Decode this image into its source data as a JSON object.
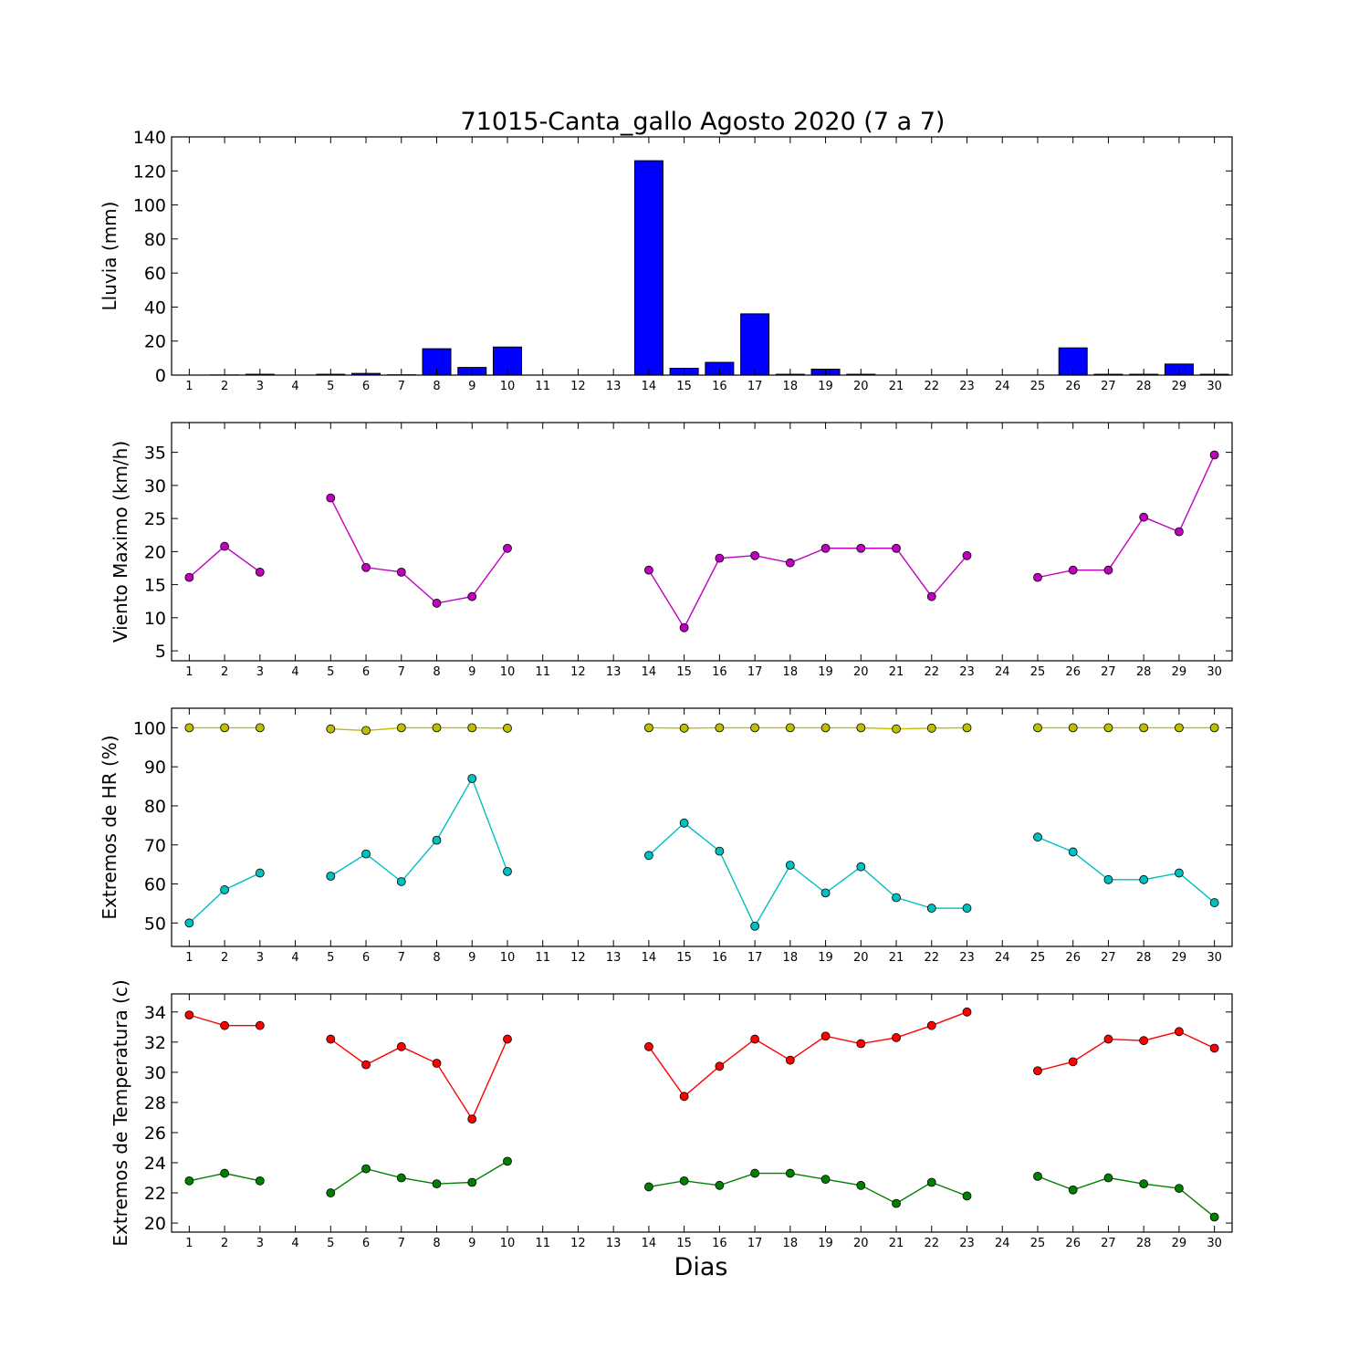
{
  "figure": {
    "title": "71015-Canta_gallo Agosto 2020  (7 a 7)",
    "xlabel": "Dias"
  },
  "chart_data": [
    {
      "type": "bar",
      "ylabel": "Lluvia (mm)",
      "ylim": [
        0,
        140
      ],
      "yticks": [
        0,
        20,
        40,
        60,
        80,
        100,
        120,
        140
      ],
      "xlim": [
        0.5,
        30.5
      ],
      "xticks": [
        1,
        2,
        3,
        4,
        5,
        6,
        7,
        8,
        9,
        10,
        11,
        12,
        13,
        14,
        15,
        16,
        17,
        18,
        19,
        20,
        21,
        22,
        23,
        24,
        25,
        26,
        27,
        28,
        29,
        30
      ],
      "categories": [
        1,
        2,
        3,
        4,
        5,
        6,
        7,
        8,
        9,
        10,
        11,
        12,
        13,
        14,
        15,
        16,
        17,
        18,
        19,
        20,
        21,
        22,
        23,
        24,
        25,
        26,
        27,
        28,
        29,
        30
      ],
      "series": [
        {
          "color": "#0000ff",
          "values": [
            0,
            0.1,
            0.5,
            0,
            0.5,
            1.0,
            0.2,
            15.5,
            4.5,
            16.5,
            0,
            0,
            0,
            126.0,
            4.0,
            7.5,
            36.0,
            0.5,
            3.5,
            0.5,
            0,
            0,
            0,
            0,
            0,
            16.0,
            0.5,
            0.5,
            6.5,
            0.5
          ]
        }
      ]
    },
    {
      "type": "line",
      "ylabel": "Viento Maximo (km/h)",
      "ylim": [
        3.5,
        39.5
      ],
      "yticks": [
        5,
        10,
        15,
        20,
        25,
        30,
        35
      ],
      "xlim": [
        0.5,
        30.5
      ],
      "xticks": [
        1,
        2,
        3,
        4,
        5,
        6,
        7,
        8,
        9,
        10,
        11,
        12,
        13,
        14,
        15,
        16,
        17,
        18,
        19,
        20,
        21,
        22,
        23,
        24,
        25,
        26,
        27,
        28,
        29,
        30
      ],
      "x": [
        1,
        2,
        3,
        4,
        5,
        6,
        7,
        8,
        9,
        10,
        11,
        12,
        13,
        14,
        15,
        16,
        17,
        18,
        19,
        20,
        21,
        22,
        23,
        24,
        25,
        26,
        27,
        28,
        29,
        30
      ],
      "series": [
        {
          "color": "#bf00bf",
          "values": [
            16.1,
            20.8,
            16.9,
            null,
            28.1,
            17.6,
            16.9,
            12.2,
            13.2,
            20.5,
            null,
            null,
            null,
            17.2,
            8.5,
            19.0,
            19.4,
            18.3,
            20.5,
            20.5,
            20.5,
            13.2,
            19.4,
            null,
            16.1,
            17.2,
            17.2,
            25.2,
            23.0,
            34.6
          ]
        }
      ]
    },
    {
      "type": "line",
      "ylabel": "Extremos de HR (%)",
      "ylim": [
        44,
        105
      ],
      "yticks": [
        50,
        60,
        70,
        80,
        90,
        100
      ],
      "xlim": [
        0.5,
        30.5
      ],
      "xticks": [
        1,
        2,
        3,
        4,
        5,
        6,
        7,
        8,
        9,
        10,
        11,
        12,
        13,
        14,
        15,
        16,
        17,
        18,
        19,
        20,
        21,
        22,
        23,
        24,
        25,
        26,
        27,
        28,
        29,
        30
      ],
      "x": [
        1,
        2,
        3,
        4,
        5,
        6,
        7,
        8,
        9,
        10,
        11,
        12,
        13,
        14,
        15,
        16,
        17,
        18,
        19,
        20,
        21,
        22,
        23,
        24,
        25,
        26,
        27,
        28,
        29,
        30
      ],
      "series": [
        {
          "color": "#bfbf00",
          "values": [
            100,
            100,
            100,
            null,
            99.7,
            99.3,
            100,
            100,
            100,
            99.9,
            null,
            null,
            null,
            100,
            99.9,
            100,
            100,
            100,
            100,
            100,
            99.7,
            99.9,
            100,
            null,
            100,
            100,
            100,
            100,
            100,
            100
          ]
        },
        {
          "color": "#00bfbf",
          "values": [
            50.0,
            58.5,
            62.8,
            null,
            62.0,
            67.7,
            60.6,
            71.2,
            87.0,
            63.2,
            null,
            null,
            null,
            67.3,
            75.6,
            68.4,
            49.2,
            64.8,
            57.7,
            64.4,
            56.5,
            53.8,
            53.8,
            null,
            72.0,
            68.2,
            61.1,
            61.1,
            62.8,
            55.2
          ]
        }
      ]
    },
    {
      "type": "line",
      "ylabel": "Extremos de Temperatura (c)",
      "ylim": [
        19.4,
        35.2
      ],
      "yticks": [
        20,
        22,
        24,
        26,
        28,
        30,
        32,
        34
      ],
      "xlim": [
        0.5,
        30.5
      ],
      "xticks": [
        1,
        2,
        3,
        4,
        5,
        6,
        7,
        8,
        9,
        10,
        11,
        12,
        13,
        14,
        15,
        16,
        17,
        18,
        19,
        20,
        21,
        22,
        23,
        24,
        25,
        26,
        27,
        28,
        29,
        30
      ],
      "x": [
        1,
        2,
        3,
        4,
        5,
        6,
        7,
        8,
        9,
        10,
        11,
        12,
        13,
        14,
        15,
        16,
        17,
        18,
        19,
        20,
        21,
        22,
        23,
        24,
        25,
        26,
        27,
        28,
        29,
        30
      ],
      "series": [
        {
          "color": "#ff0000",
          "values": [
            33.8,
            33.1,
            33.1,
            null,
            32.2,
            30.5,
            31.7,
            30.6,
            26.9,
            32.2,
            null,
            null,
            null,
            31.7,
            28.4,
            30.4,
            32.2,
            30.8,
            32.4,
            31.9,
            32.3,
            33.1,
            34.0,
            null,
            30.1,
            30.7,
            32.2,
            32.1,
            32.7,
            31.6
          ]
        },
        {
          "color": "#008000",
          "values": [
            22.8,
            23.3,
            22.8,
            null,
            22.0,
            23.6,
            23.0,
            22.6,
            22.7,
            24.1,
            null,
            null,
            null,
            22.4,
            22.8,
            22.5,
            23.3,
            23.3,
            22.9,
            22.5,
            21.3,
            22.7,
            21.8,
            null,
            23.1,
            22.2,
            23.0,
            22.6,
            22.3,
            20.4
          ]
        }
      ]
    }
  ]
}
